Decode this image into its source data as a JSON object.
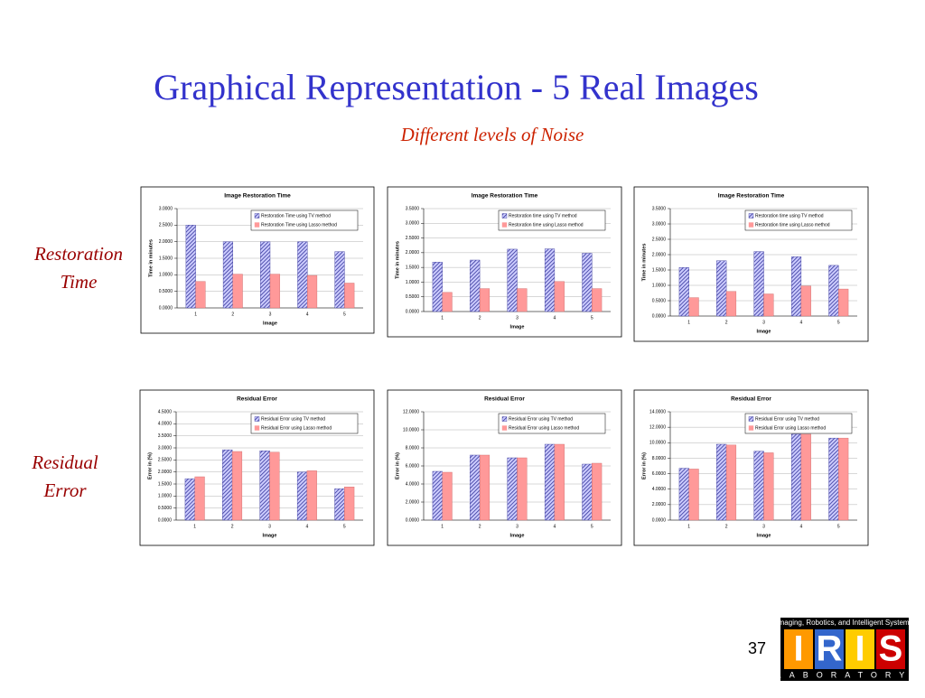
{
  "slide": {
    "title": "Graphical Representation - 5 Real Images",
    "subtitle": "Different levels of Noise",
    "row_labels": [
      [
        "Restoration",
        "Time"
      ],
      [
        "Residual",
        "Error"
      ]
    ],
    "page_number": "37",
    "logo": {
      "tagline": "Imaging, Robotics, and Intelligent Systems",
      "letters": [
        "I",
        "R",
        "I",
        "S"
      ],
      "footer": "LABORATORY"
    }
  },
  "chart_data": [
    {
      "type": "bar",
      "title": "Image Restoration Time",
      "x_label": "Image",
      "y_label": "Time in minutes",
      "categories": [
        "1",
        "2",
        "3",
        "4",
        "5"
      ],
      "grid": true,
      "ylim": [
        0,
        3
      ],
      "yticks": [
        {
          "value": 0,
          "label": "0.0000"
        },
        {
          "value": 0.5,
          "label": "0.5000"
        },
        {
          "value": 1,
          "label": "1.0000"
        },
        {
          "value": 1.5,
          "label": "1.5000"
        },
        {
          "value": 2,
          "label": "2.0000"
        },
        {
          "value": 2.5,
          "label": "2.5000"
        },
        {
          "value": 3,
          "label": "3.0000"
        }
      ],
      "series": [
        {
          "name": "Restoration Time using TV method",
          "color": "#333399",
          "values": [
            2.5,
            2.0,
            2.0,
            2.0,
            1.7
          ]
        },
        {
          "name": "Restoration Time using Lasso method",
          "color": "#ff9999",
          "values": [
            0.8,
            1.02,
            1.02,
            0.98,
            0.75
          ]
        }
      ]
    },
    {
      "type": "bar",
      "title": "Image Restoration Time",
      "x_label": "Image",
      "y_label": "Time in minutes",
      "categories": [
        "1",
        "2",
        "3",
        "4",
        "5"
      ],
      "grid": true,
      "ylim": [
        0,
        3.5
      ],
      "yticks": [
        {
          "value": 0,
          "label": "0.0000"
        },
        {
          "value": 0.5,
          "label": "0.5000"
        },
        {
          "value": 1,
          "label": "1.0000"
        },
        {
          "value": 1.5,
          "label": "1.5000"
        },
        {
          "value": 2,
          "label": "2.0000"
        },
        {
          "value": 2.5,
          "label": "2.5000"
        },
        {
          "value": 3,
          "label": "3.0000"
        },
        {
          "value": 3.5,
          "label": "3.5000"
        }
      ],
      "series": [
        {
          "name": "Restoration time using TV method",
          "color": "#333399",
          "values": [
            1.68,
            1.75,
            2.12,
            2.13,
            1.98
          ]
        },
        {
          "name": "Restoration time using Lasso method",
          "color": "#ff9999",
          "values": [
            0.65,
            0.78,
            0.78,
            1.02,
            0.78
          ]
        }
      ]
    },
    {
      "type": "bar",
      "title": "Image Restoration Time",
      "x_label": "Image",
      "y_label": "Time in minutes",
      "categories": [
        "1",
        "2",
        "3",
        "4",
        "5"
      ],
      "grid": true,
      "ylim": [
        0,
        3.5
      ],
      "yticks": [
        {
          "value": 0,
          "label": "0.0000"
        },
        {
          "value": 0.5,
          "label": "0.5000"
        },
        {
          "value": 1,
          "label": "1.0000"
        },
        {
          "value": 1.5,
          "label": "1.5000"
        },
        {
          "value": 2,
          "label": "2.0000"
        },
        {
          "value": 2.5,
          "label": "2.5000"
        },
        {
          "value": 3,
          "label": "3.0000"
        },
        {
          "value": 3.5,
          "label": "3.5000"
        }
      ],
      "series": [
        {
          "name": "Restoration time using TV method",
          "color": "#333399",
          "values": [
            1.58,
            1.8,
            2.1,
            1.93,
            1.65
          ]
        },
        {
          "name": "Restoration time using Lasso method",
          "color": "#ff9999",
          "values": [
            0.6,
            0.8,
            0.72,
            0.98,
            0.88
          ]
        }
      ]
    },
    {
      "type": "bar",
      "title": "Residual Error",
      "x_label": "Image",
      "y_label": "Error in (%)",
      "categories": [
        "1",
        "2",
        "3",
        "4",
        "5"
      ],
      "grid": true,
      "ylim": [
        0,
        4.5
      ],
      "yticks": [
        {
          "value": 0,
          "label": "0.0000"
        },
        {
          "value": 0.5,
          "label": "0.5000"
        },
        {
          "value": 1,
          "label": "1.0000"
        },
        {
          "value": 1.5,
          "label": "1.5000"
        },
        {
          "value": 2,
          "label": "2.0000"
        },
        {
          "value": 2.5,
          "label": "2.5000"
        },
        {
          "value": 3,
          "label": "3.0000"
        },
        {
          "value": 3.5,
          "label": "3.5000"
        },
        {
          "value": 4,
          "label": "4.0000"
        },
        {
          "value": 4.5,
          "label": "4.5000"
        }
      ],
      "series": [
        {
          "name": "Residual Error using TV method",
          "color": "#333399",
          "values": [
            1.72,
            2.92,
            2.88,
            2.0,
            1.3
          ]
        },
        {
          "name": "Residual Error using Lasso method",
          "color": "#ff9999",
          "values": [
            1.8,
            2.85,
            2.82,
            2.05,
            1.38
          ]
        }
      ]
    },
    {
      "type": "bar",
      "title": "Residual Error",
      "x_label": "Image",
      "y_label": "Error in (%)",
      "categories": [
        "1",
        "2",
        "3",
        "4",
        "5"
      ],
      "grid": true,
      "ylim": [
        0,
        12
      ],
      "yticks": [
        {
          "value": 0,
          "label": "0.0000"
        },
        {
          "value": 2,
          "label": "2.0000"
        },
        {
          "value": 4,
          "label": "4.0000"
        },
        {
          "value": 6,
          "label": "6.0000"
        },
        {
          "value": 8,
          "label": "8.0000"
        },
        {
          "value": 10,
          "label": "10.0000"
        },
        {
          "value": 12,
          "label": "12.0000"
        }
      ],
      "series": [
        {
          "name": "Residual Error using TV method",
          "color": "#333399",
          "values": [
            5.4,
            7.2,
            6.9,
            8.4,
            6.2
          ]
        },
        {
          "name": "Residual Error using Lasso method",
          "color": "#ff9999",
          "values": [
            5.3,
            7.2,
            6.9,
            8.4,
            6.3
          ]
        }
      ]
    },
    {
      "type": "bar",
      "title": "Residual Error",
      "x_label": "Image",
      "y_label": "Error in (%)",
      "categories": [
        "1",
        "2",
        "3",
        "4",
        "5"
      ],
      "grid": true,
      "ylim": [
        0,
        14
      ],
      "yticks": [
        {
          "value": 0,
          "label": "0.0000"
        },
        {
          "value": 2,
          "label": "2.0000"
        },
        {
          "value": 4,
          "label": "4.0000"
        },
        {
          "value": 6,
          "label": "6.0000"
        },
        {
          "value": 8,
          "label": "8.0000"
        },
        {
          "value": 10,
          "label": "10.0000"
        },
        {
          "value": 12,
          "label": "12.0000"
        },
        {
          "value": 14,
          "label": "14.0000"
        }
      ],
      "series": [
        {
          "name": "Residual Error using TV method",
          "color": "#333399",
          "values": [
            6.7,
            9.8,
            8.9,
            11.1,
            10.6
          ]
        },
        {
          "name": "Residual Error using Lasso method",
          "color": "#ff9999",
          "values": [
            6.6,
            9.7,
            8.7,
            11.1,
            10.6
          ]
        }
      ]
    }
  ]
}
